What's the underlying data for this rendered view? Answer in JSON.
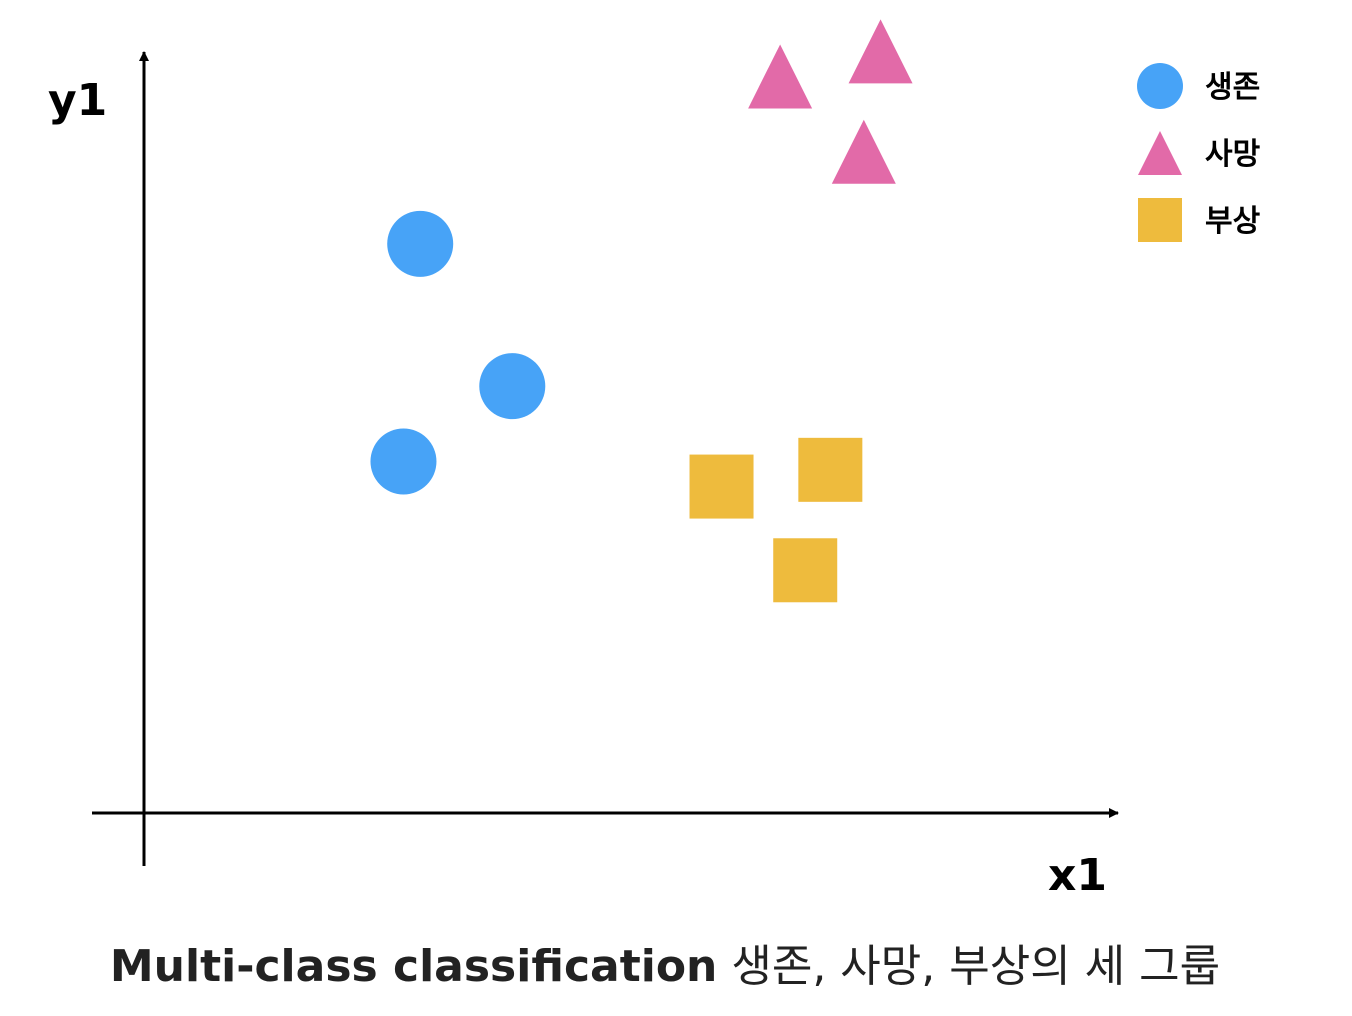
{
  "chart_data": {
    "type": "scatter",
    "xlabel": "x1",
    "ylabel": "y1",
    "grid": false,
    "legend_position": "top-right",
    "series": [
      {
        "name": "생존",
        "marker": "circle",
        "color": "#47A3F7",
        "points": [
          [
            3.3,
            6.8
          ],
          [
            3.1,
            4.2
          ],
          [
            4.4,
            5.1
          ]
        ]
      },
      {
        "name": "사망",
        "marker": "triangle",
        "color": "#E26AA8",
        "points": [
          [
            7.6,
            8.8
          ],
          [
            8.8,
            9.1
          ],
          [
            8.6,
            7.9
          ]
        ]
      },
      {
        "name": "부상",
        "marker": "square",
        "color": "#EEBB3D",
        "points": [
          [
            6.9,
            3.9
          ],
          [
            8.2,
            4.1
          ],
          [
            7.9,
            2.9
          ]
        ]
      }
    ]
  },
  "caption": {
    "bold": "Multi-class classification",
    "normal": " 생존, 사망, 부상의 세 그룹"
  }
}
